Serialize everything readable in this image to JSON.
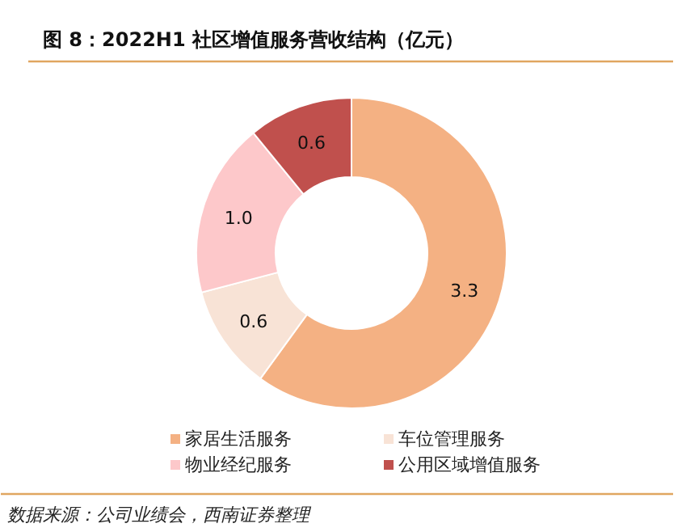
{
  "chart_data": {
    "type": "donut",
    "title": "图 8：2022H1 社区增值服务营收结构（亿元）",
    "categories": [
      "家居生活服务",
      "车位管理服务",
      "物业经纪服务",
      "公用区域增值服务"
    ],
    "values": [
      3.3,
      0.6,
      1.0,
      0.6
    ],
    "colors": [
      "#f4b183",
      "#f8e3d6",
      "#fdc8ca",
      "#c0504d"
    ],
    "value_labels": [
      "3.3",
      "0.6",
      "1.0",
      "0.6"
    ],
    "legend": "bottom",
    "annotations": [
      "数据来源：公司业绩会，西南证券整理"
    ]
  }
}
